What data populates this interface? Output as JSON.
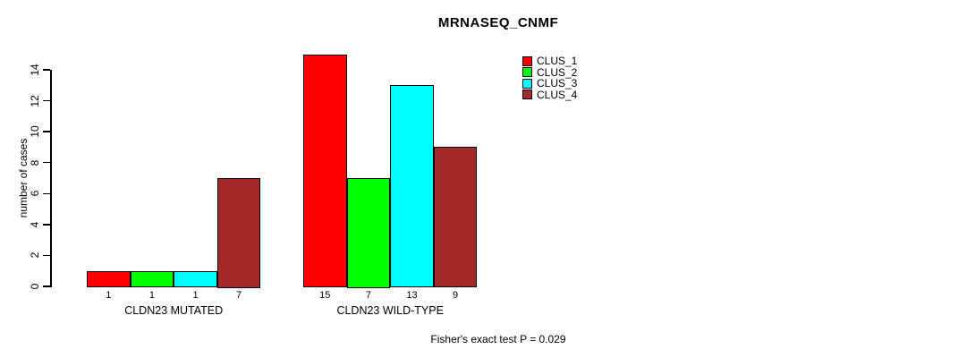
{
  "title": "MRNASEQ_CNMF",
  "footer": "Fisher's exact test P = 0.029",
  "chart_data": {
    "type": "bar",
    "title": "MRNASEQ_CNMF",
    "xlabel": "",
    "ylabel": "number of cases",
    "annotation": "Fisher's exact test P = 0.029",
    "categories": [
      "CLDN23 MUTATED",
      "CLDN23 WILD-TYPE"
    ],
    "series": [
      {
        "name": "CLUS_1",
        "color": "#FF0000",
        "values": [
          1,
          15
        ]
      },
      {
        "name": "CLUS_2",
        "color": "#00FF00",
        "values": [
          1,
          7
        ]
      },
      {
        "name": "CLUS_3",
        "color": "#00FFFF",
        "values": [
          1,
          13
        ]
      },
      {
        "name": "CLUS_4",
        "color": "#A52A2A",
        "values": [
          7,
          9
        ]
      }
    ],
    "bar_labels": [
      [
        "1",
        "1",
        "1",
        "7"
      ],
      [
        "15",
        "7",
        "13",
        "9"
      ]
    ],
    "yticks": [
      0,
      2,
      4,
      6,
      8,
      10,
      12,
      14
    ],
    "ylim": [
      0,
      15
    ],
    "grid": false,
    "legend_position": "top-right",
    "axis_color": "#000000",
    "background_color": "#FFFFFF"
  }
}
